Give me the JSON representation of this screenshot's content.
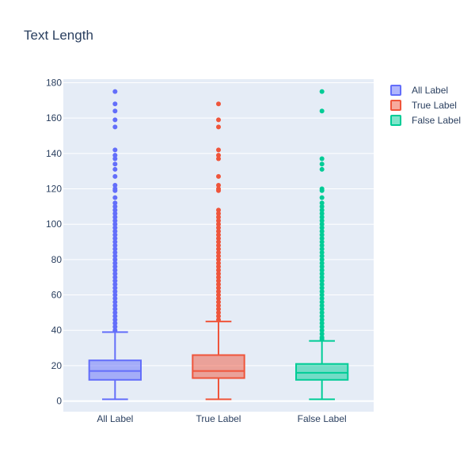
{
  "chart_data": {
    "type": "box",
    "title": "Text Length",
    "xlabel": "",
    "ylabel": "",
    "ylim": [
      -6,
      182
    ],
    "yticks": [
      0,
      20,
      40,
      60,
      80,
      100,
      120,
      140,
      160,
      180
    ],
    "categories": [
      "All Label",
      "True Label",
      "False Label"
    ],
    "grid": true,
    "legend_position": "top-right",
    "series": [
      {
        "name": "All Label",
        "color": "#636efa",
        "fill": "rgba(99,110,250,0.5)",
        "min": 1,
        "q1": 12,
        "median": 17,
        "q3": 23,
        "max": 39,
        "outliers": [
          175,
          168,
          164,
          159,
          155,
          142,
          139,
          137,
          134,
          131,
          127,
          122,
          120,
          119,
          115,
          112,
          110,
          108,
          106,
          104,
          102,
          100,
          98,
          96,
          94,
          92,
          90,
          88,
          86,
          84,
          82,
          80,
          78,
          76,
          74,
          72,
          70,
          68,
          66,
          64,
          62,
          60,
          58,
          56,
          54,
          52,
          50,
          48,
          46,
          44,
          42,
          40
        ]
      },
      {
        "name": "True Label",
        "color": "#ef553b",
        "fill": "rgba(239,85,59,0.5)",
        "min": 1,
        "q1": 13,
        "median": 17,
        "q3": 26,
        "max": 45,
        "outliers": [
          168,
          159,
          155,
          142,
          139,
          137,
          127,
          122,
          120,
          119,
          108,
          106,
          104,
          102,
          100,
          98,
          96,
          94,
          92,
          90,
          88,
          86,
          84,
          82,
          80,
          78,
          76,
          74,
          72,
          70,
          68,
          66,
          64,
          62,
          60,
          58,
          56,
          54,
          52,
          50,
          48,
          46
        ]
      },
      {
        "name": "False Label",
        "color": "#00cc96",
        "fill": "rgba(0,204,150,0.5)",
        "min": 1,
        "q1": 12,
        "median": 16,
        "q3": 21,
        "max": 34,
        "outliers": [
          175,
          164,
          137,
          134,
          131,
          120,
          119,
          115,
          112,
          110,
          108,
          106,
          104,
          102,
          100,
          98,
          96,
          94,
          92,
          90,
          88,
          86,
          84,
          82,
          80,
          78,
          76,
          74,
          72,
          70,
          68,
          66,
          64,
          62,
          60,
          58,
          56,
          54,
          52,
          50,
          48,
          46,
          44,
          42,
          40,
          38,
          36,
          35
        ]
      }
    ]
  }
}
